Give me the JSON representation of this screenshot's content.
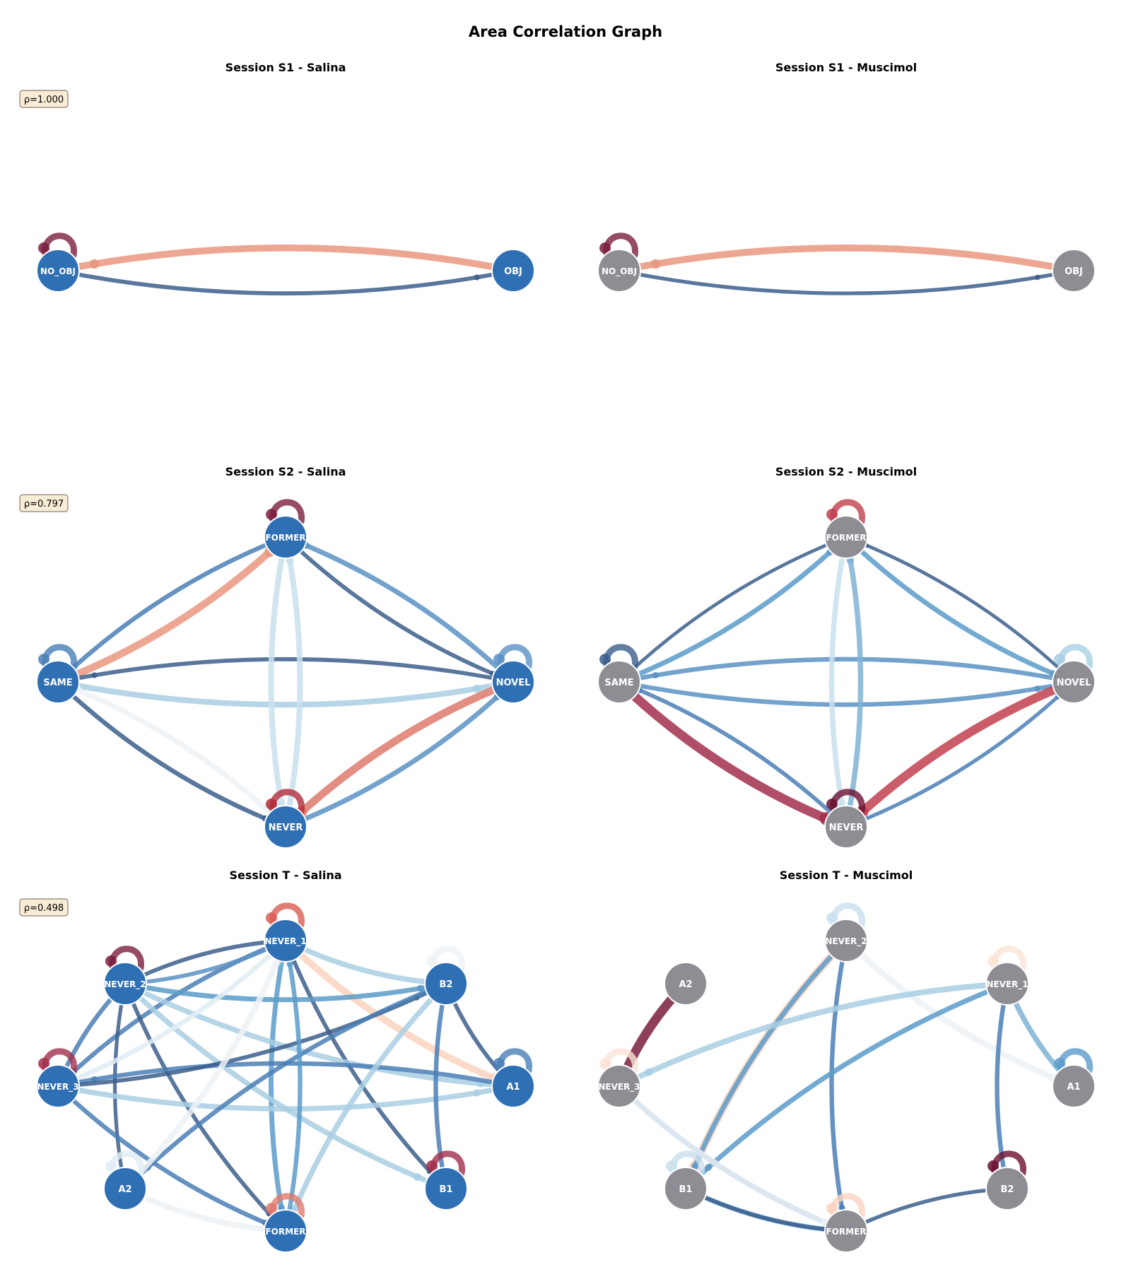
{
  "figure": {
    "title": "Area Correlation Graph",
    "colors": {
      "salina_node": "#2f6fb3",
      "muscimol_node": "#8e8d93",
      "node_border": "#ffffff",
      "rho_box_fill": "#f8ecd4",
      "rho_box_border": "#8a7f70"
    }
  },
  "panels": [
    {
      "id": "s1-salina",
      "title": "Session S1 - Salina",
      "rho": "ρ=1.000",
      "condition": "salina",
      "nodes": [
        {
          "id": "NO_OBJ",
          "label": "NO_OBJ"
        },
        {
          "id": "OBJ",
          "label": "OBJ"
        }
      ],
      "edges": [
        {
          "from": "OBJ",
          "to": "NO_OBJ",
          "weight": 0.7,
          "color": "#e9967f"
        },
        {
          "from": "NO_OBJ",
          "to": "OBJ",
          "weight": 0.35,
          "color": "#3c5e8c"
        }
      ],
      "self_loops": [
        {
          "node": "NO_OBJ",
          "color": "#7a1f3d"
        }
      ]
    },
    {
      "id": "s1-muscimol",
      "title": "Session S1 - Muscimol",
      "rho": "",
      "condition": "muscimol",
      "nodes": [
        {
          "id": "NO_OBJ",
          "label": "NO_OBJ"
        },
        {
          "id": "OBJ",
          "label": "OBJ"
        }
      ],
      "edges": [
        {
          "from": "OBJ",
          "to": "NO_OBJ",
          "weight": 0.7,
          "color": "#e9967f"
        },
        {
          "from": "NO_OBJ",
          "to": "OBJ",
          "weight": 0.3,
          "color": "#3c5e8c"
        }
      ],
      "self_loops": [
        {
          "node": "NO_OBJ",
          "color": "#7a1f3d"
        }
      ]
    },
    {
      "id": "s2-salina",
      "title": "Session S2 - Salina",
      "rho": "ρ=0.797",
      "condition": "salina",
      "nodes": [
        {
          "id": "FORMER",
          "label": "FORMER"
        },
        {
          "id": "SAME",
          "label": "SAME"
        },
        {
          "id": "NOVEL",
          "label": "NOVEL"
        },
        {
          "id": "NEVER",
          "label": "NEVER"
        }
      ],
      "edges": [
        {
          "from": "SAME",
          "to": "FORMER",
          "weight": 0.75,
          "color": "#e9967f"
        },
        {
          "from": "FORMER",
          "to": "SAME",
          "weight": 0.4,
          "color": "#4a7fb5"
        },
        {
          "from": "SAME",
          "to": "NOVEL",
          "weight": 0.55,
          "color": "#a9cfe4"
        },
        {
          "from": "NOVEL",
          "to": "SAME",
          "weight": 0.35,
          "color": "#3c5e8c"
        },
        {
          "from": "FORMER",
          "to": "NOVEL",
          "weight": 0.35,
          "color": "#3c5e8c"
        },
        {
          "from": "NOVEL",
          "to": "FORMER",
          "weight": 0.45,
          "color": "#5b92c4"
        },
        {
          "from": "FORMER",
          "to": "NEVER",
          "weight": 0.55,
          "color": "#c9e0ee"
        },
        {
          "from": "NEVER",
          "to": "FORMER",
          "weight": 0.55,
          "color": "#c9e0ee"
        },
        {
          "from": "NOVEL",
          "to": "NEVER",
          "weight": 0.8,
          "color": "#de7a6c"
        },
        {
          "from": "NEVER",
          "to": "NOVEL",
          "weight": 0.45,
          "color": "#5b92c4"
        },
        {
          "from": "SAME",
          "to": "NEVER",
          "weight": 0.4,
          "color": "#3c5e8c"
        },
        {
          "from": "NEVER",
          "to": "SAME",
          "weight": 0.5,
          "color": "#eef2f6"
        }
      ],
      "self_loops": [
        {
          "node": "FORMER",
          "color": "#7a1f3d"
        },
        {
          "node": "NEVER",
          "color": "#b22b3b"
        },
        {
          "node": "SAME",
          "color": "#4a7fb5"
        },
        {
          "node": "NOVEL",
          "color": "#5b92c4"
        }
      ]
    },
    {
      "id": "s2-muscimol",
      "title": "Session S2 - Muscimol",
      "rho": "",
      "condition": "muscimol",
      "nodes": [
        {
          "id": "FORMER",
          "label": "FORMER"
        },
        {
          "id": "SAME",
          "label": "SAME"
        },
        {
          "id": "NOVEL",
          "label": "NOVEL"
        },
        {
          "id": "NEVER",
          "label": "NEVER"
        }
      ],
      "edges": [
        {
          "from": "SAME",
          "to": "FORMER",
          "weight": 0.45,
          "color": "#5b9bc9"
        },
        {
          "from": "FORMER",
          "to": "SAME",
          "weight": 0.25,
          "color": "#3c5e8c"
        },
        {
          "from": "SAME",
          "to": "NOVEL",
          "weight": 0.4,
          "color": "#5b92c4"
        },
        {
          "from": "NOVEL",
          "to": "SAME",
          "weight": 0.4,
          "color": "#5b92c4"
        },
        {
          "from": "FORMER",
          "to": "NOVEL",
          "weight": 0.45,
          "color": "#5b9bc9"
        },
        {
          "from": "NOVEL",
          "to": "FORMER",
          "weight": 0.25,
          "color": "#3c5e8c"
        },
        {
          "from": "FORMER",
          "to": "NEVER",
          "weight": 0.5,
          "color": "#c9e0ee"
        },
        {
          "from": "NEVER",
          "to": "FORMER",
          "weight": 0.5,
          "color": "#7fb3d5"
        },
        {
          "from": "NOVEL",
          "to": "NEVER",
          "weight": 0.95,
          "color": "#c2404f"
        },
        {
          "from": "NEVER",
          "to": "NOVEL",
          "weight": 0.3,
          "color": "#4a7fb5"
        },
        {
          "from": "SAME",
          "to": "NEVER",
          "weight": 1.0,
          "color": "#a32f4c"
        },
        {
          "from": "NEVER",
          "to": "SAME",
          "weight": 0.35,
          "color": "#4a7fb5"
        }
      ],
      "self_loops": [
        {
          "node": "FORMER",
          "color": "#c2404f"
        },
        {
          "node": "NEVER",
          "color": "#6b1232"
        },
        {
          "node": "SAME",
          "color": "#3c5e8c"
        },
        {
          "node": "NOVEL",
          "color": "#a9cfe4"
        }
      ]
    },
    {
      "id": "t-salina",
      "title": "Session T - Salina",
      "rho": "ρ=0.498",
      "condition": "salina",
      "nodes": [
        {
          "id": "NEVER_1",
          "label": "NEVER_1"
        },
        {
          "id": "NEVER_2",
          "label": "NEVER_2"
        },
        {
          "id": "B2",
          "label": "B2"
        },
        {
          "id": "NEVER_3",
          "label": "NEVER_3"
        },
        {
          "id": "A1",
          "label": "A1"
        },
        {
          "id": "A2",
          "label": "A2"
        },
        {
          "id": "B1",
          "label": "B1"
        },
        {
          "id": "FORMER",
          "label": "FORMER"
        }
      ],
      "edges": [
        {
          "from": "NEVER_1",
          "to": "A1",
          "weight": 0.7,
          "color": "#fbd3c0"
        },
        {
          "from": "NEVER_1",
          "to": "B2",
          "weight": 0.5,
          "color": "#a9cfe4"
        },
        {
          "from": "NEVER_1",
          "to": "NEVER_2",
          "weight": 0.35,
          "color": "#3c5e8c"
        },
        {
          "from": "NEVER_1",
          "to": "NEVER_3",
          "weight": 0.4,
          "color": "#4a7fb5"
        },
        {
          "from": "NEVER_1",
          "to": "FORMER",
          "weight": 0.45,
          "color": "#5b9bc9"
        },
        {
          "from": "NEVER_1",
          "to": "B1",
          "weight": 0.35,
          "color": "#3c5e8c"
        },
        {
          "from": "NEVER_2",
          "to": "B2",
          "weight": 0.45,
          "color": "#5b9bc9"
        },
        {
          "from": "NEVER_2",
          "to": "A1",
          "weight": 0.5,
          "color": "#a9cfe4"
        },
        {
          "from": "NEVER_2",
          "to": "B1",
          "weight": 0.5,
          "color": "#a9cfe4"
        },
        {
          "from": "NEVER_2",
          "to": "NEVER_3",
          "weight": 0.4,
          "color": "#4a7fb5"
        },
        {
          "from": "NEVER_2",
          "to": "FORMER",
          "weight": 0.35,
          "color": "#3c5e8c"
        },
        {
          "from": "NEVER_2",
          "to": "A2",
          "weight": 0.3,
          "color": "#3c5e8c"
        },
        {
          "from": "NEVER_3",
          "to": "A1",
          "weight": 0.5,
          "color": "#a9cfe4"
        },
        {
          "from": "A1",
          "to": "NEVER_3",
          "weight": 0.4,
          "color": "#4a7fb5"
        },
        {
          "from": "NEVER_3",
          "to": "B2",
          "weight": 0.35,
          "color": "#3c5e8c"
        },
        {
          "from": "NEVER_3",
          "to": "FORMER",
          "weight": 0.4,
          "color": "#4a7fb5"
        },
        {
          "from": "NEVER_3",
          "to": "NEVER_1",
          "weight": 0.45,
          "color": "#e0ecf5"
        },
        {
          "from": "B2",
          "to": "A2",
          "weight": 0.4,
          "color": "#4a7fb5"
        },
        {
          "from": "B2",
          "to": "FORMER",
          "weight": 0.5,
          "color": "#a9cfe4"
        },
        {
          "from": "B2",
          "to": "B1",
          "weight": 0.4,
          "color": "#4a7fb5"
        },
        {
          "from": "B2",
          "to": "A1",
          "weight": 0.35,
          "color": "#3c5e8c"
        },
        {
          "from": "A2",
          "to": "FORMER",
          "weight": 0.55,
          "color": "#eef2f6"
        },
        {
          "from": "A2",
          "to": "NEVER_1",
          "weight": 0.55,
          "color": "#eef2f6"
        },
        {
          "from": "FORMER",
          "to": "NEVER_1",
          "weight": 0.4,
          "color": "#5b9bc9"
        },
        {
          "from": "NEVER_2",
          "to": "NEVER_1",
          "weight": 0.35,
          "color": "#5b92c4"
        }
      ],
      "self_loops": [
        {
          "node": "NEVER_1",
          "color": "#d95f55"
        },
        {
          "node": "NEVER_2",
          "color": "#7a1f3d"
        },
        {
          "node": "NEVER_3",
          "color": "#a32f4c"
        },
        {
          "node": "B1",
          "color": "#a32f4c"
        },
        {
          "node": "FORMER",
          "color": "#de7a6c"
        },
        {
          "node": "A2",
          "color": "#e0ecf5"
        },
        {
          "node": "A1",
          "color": "#4a7fb5"
        },
        {
          "node": "B2",
          "color": "#eef2f6"
        }
      ]
    },
    {
      "id": "t-muscimol",
      "title": "Session T - Muscimol",
      "rho": "",
      "condition": "muscimol",
      "nodes": [
        {
          "id": "NEVER_2",
          "label": "NEVER_2"
        },
        {
          "id": "A2",
          "label": "A2"
        },
        {
          "id": "NEVER_1",
          "label": "NEVER_1"
        },
        {
          "id": "NEVER_3",
          "label": "NEVER_3"
        },
        {
          "id": "A1",
          "label": "A1"
        },
        {
          "id": "B1",
          "label": "B1"
        },
        {
          "id": "B2",
          "label": "B2"
        },
        {
          "id": "FORMER",
          "label": "FORMER"
        }
      ],
      "edges": [
        {
          "from": "A2",
          "to": "NEVER_3",
          "weight": 1.0,
          "color": "#7a1f3d"
        },
        {
          "from": "NEVER_2",
          "to": "B1",
          "weight": 0.85,
          "color": "#fbd3c0"
        },
        {
          "from": "NEVER_2",
          "to": "B1",
          "weight": 0.45,
          "color": "#5b9bc9"
        },
        {
          "from": "NEVER_2",
          "to": "FORMER",
          "weight": 0.4,
          "color": "#4a7fb5"
        },
        {
          "from": "NEVER_2",
          "to": "A1",
          "weight": 0.6,
          "color": "#eef2f6"
        },
        {
          "from": "NEVER_1",
          "to": "NEVER_3",
          "weight": 0.55,
          "color": "#a9cfe4"
        },
        {
          "from": "NEVER_1",
          "to": "A1",
          "weight": 0.5,
          "color": "#7fb3d5"
        },
        {
          "from": "NEVER_1",
          "to": "B1",
          "weight": 0.45,
          "color": "#5b9bc9"
        },
        {
          "from": "NEVER_1",
          "to": "B2",
          "weight": 0.4,
          "color": "#4a7fb5"
        },
        {
          "from": "NEVER_3",
          "to": "FORMER",
          "weight": 0.45,
          "color": "#5b92c4"
        },
        {
          "from": "NEVER_3",
          "to": "FORMER",
          "weight": 0.6,
          "color": "#eef2f6"
        },
        {
          "from": "B1",
          "to": "FORMER",
          "weight": 0.45,
          "color": "#5b9bc9"
        },
        {
          "from": "B1",
          "to": "FORMER",
          "weight": 0.3,
          "color": "#3c5e8c"
        },
        {
          "from": "B2",
          "to": "FORMER",
          "weight": 0.3,
          "color": "#3c5e8c"
        }
      ],
      "self_loops": [
        {
          "node": "NEVER_2",
          "color": "#c9e0ee"
        },
        {
          "node": "NEVER_1",
          "color": "#fbe3d6"
        },
        {
          "node": "NEVER_3",
          "color": "#fbe3d6"
        },
        {
          "node": "A1",
          "color": "#5b9bc9"
        },
        {
          "node": "B1",
          "color": "#c9e0ee"
        },
        {
          "node": "B2",
          "color": "#6b1232"
        },
        {
          "node": "FORMER",
          "color": "#fbd3c0"
        }
      ]
    }
  ]
}
